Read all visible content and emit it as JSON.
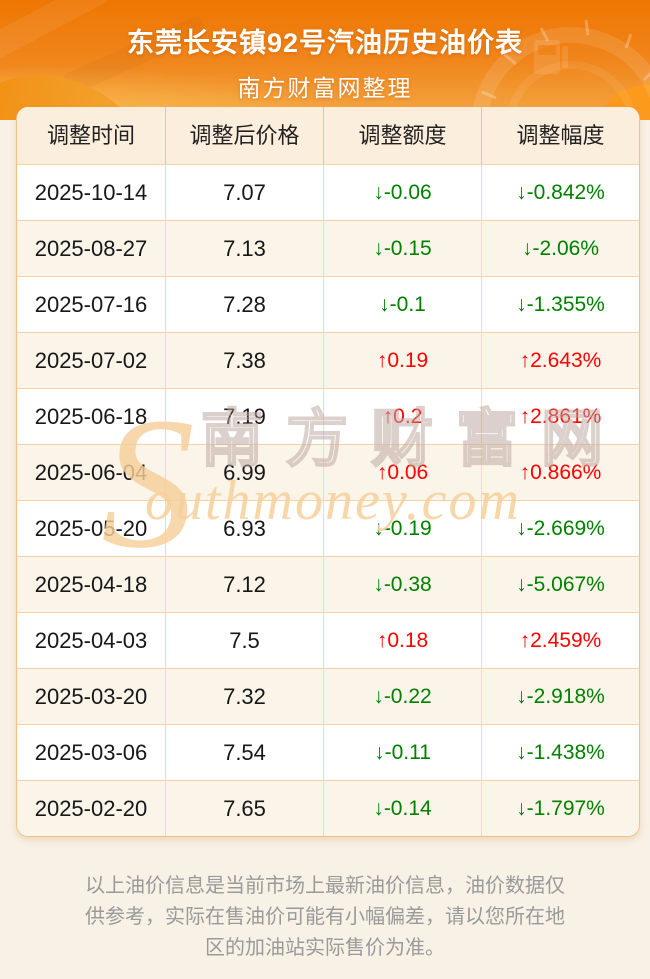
{
  "header": {
    "title": "东莞长安镇92号汽油历史油价表",
    "subtitle": "南方财富网整理"
  },
  "table": {
    "columns": [
      "调整时间",
      "调整后价格",
      "调整额度",
      "调整幅度"
    ],
    "rows": [
      {
        "date": "2025-10-14",
        "price": "7.07",
        "change": "↓-0.06",
        "percent": "↓-0.842%",
        "direction": "down"
      },
      {
        "date": "2025-08-27",
        "price": "7.13",
        "change": "↓-0.15",
        "percent": "↓-2.06%",
        "direction": "down"
      },
      {
        "date": "2025-07-16",
        "price": "7.28",
        "change": "↓-0.1",
        "percent": "↓-1.355%",
        "direction": "down"
      },
      {
        "date": "2025-07-02",
        "price": "7.38",
        "change": "↑0.19",
        "percent": "↑2.643%",
        "direction": "up"
      },
      {
        "date": "2025-06-18",
        "price": "7.19",
        "change": "↑0.2",
        "percent": "↑2.861%",
        "direction": "up"
      },
      {
        "date": "2025-06-04",
        "price": "6.99",
        "change": "↑0.06",
        "percent": "↑0.866%",
        "direction": "up"
      },
      {
        "date": "2025-05-20",
        "price": "6.93",
        "change": "↓-0.19",
        "percent": "↓-2.669%",
        "direction": "down"
      },
      {
        "date": "2025-04-18",
        "price": "7.12",
        "change": "↓-0.38",
        "percent": "↓-5.067%",
        "direction": "down"
      },
      {
        "date": "2025-04-03",
        "price": "7.5",
        "change": "↑0.18",
        "percent": "↑2.459%",
        "direction": "up"
      },
      {
        "date": "2025-03-20",
        "price": "7.32",
        "change": "↓-0.22",
        "percent": "↓-2.918%",
        "direction": "down"
      },
      {
        "date": "2025-03-06",
        "price": "7.54",
        "change": "↓-0.11",
        "percent": "↓-1.438%",
        "direction": "down"
      },
      {
        "date": "2025-02-20",
        "price": "7.65",
        "change": "↓-0.14",
        "percent": "↓-1.797%",
        "direction": "down"
      }
    ]
  },
  "watermark": {
    "s_glyph": "S",
    "site_name_cn": "南方财富网",
    "domain": "outhmoney.com"
  },
  "footer": {
    "note": "以上油价信息是当前市场上最新油价信息，油价数据仅供参考，实际在售油价可能有小幅偏差，请以您所在地区的加油站实际售价为准。"
  },
  "colors": {
    "banner_top": "#ee7602",
    "banner_bottom": "#f4a845",
    "page_bg": "#f8f1e6",
    "header_bg": "#fceedd",
    "row_alt_bg": "#faf4e9",
    "border_strong": "#f3c185",
    "border_soft": "#f4d4a6",
    "text_dark": "#171717",
    "color_up": "#fe0000",
    "color_down": "#008000",
    "watermark_gold": "#f6d09b",
    "footer_text": "#9a9a9a"
  }
}
